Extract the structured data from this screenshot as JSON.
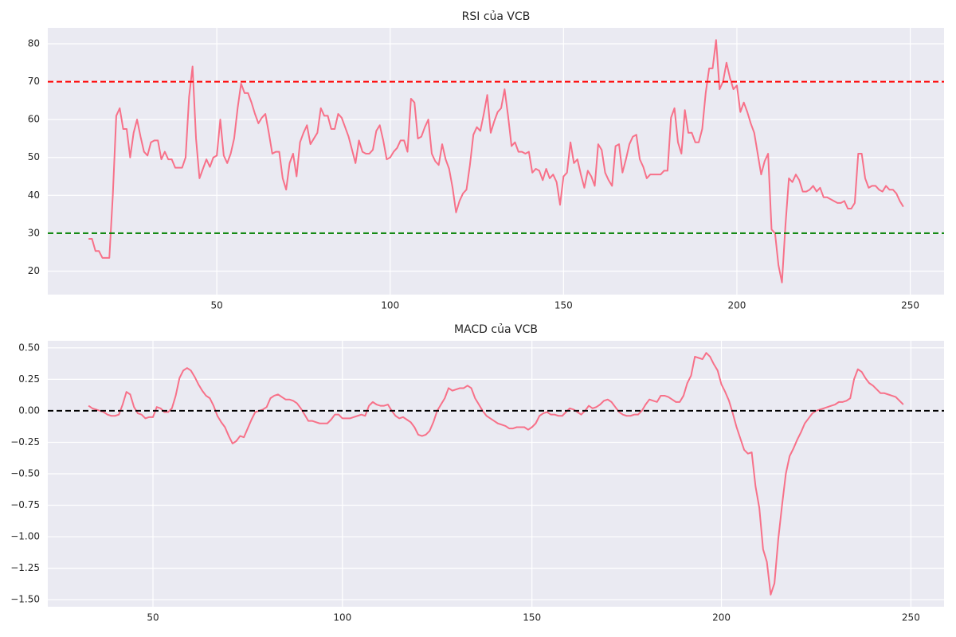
{
  "chart_data": [
    {
      "type": "line",
      "title": "RSI của VCB",
      "color": "#f77189",
      "grid": true,
      "x": [
        13,
        14,
        15,
        16,
        17,
        18,
        19,
        20,
        21,
        22,
        23,
        24,
        25,
        26,
        27,
        28,
        29,
        30,
        31,
        32,
        33,
        34,
        35,
        36,
        37,
        38,
        39,
        40,
        41,
        42,
        43,
        44,
        45,
        46,
        47,
        48,
        49,
        50,
        51,
        52,
        53,
        54,
        55,
        56,
        57,
        58,
        59,
        60,
        61,
        62,
        63,
        64,
        65,
        66,
        67,
        68,
        69,
        70,
        71,
        72,
        73,
        74,
        75,
        76,
        77,
        78,
        79,
        80,
        81,
        82,
        83,
        84,
        85,
        86,
        87,
        88,
        89,
        90,
        91,
        92,
        93,
        94,
        95,
        96,
        97,
        98,
        99,
        100,
        101,
        102,
        103,
        104,
        105,
        106,
        107,
        108,
        109,
        110,
        111,
        112,
        113,
        114,
        115,
        116,
        117,
        118,
        119,
        120,
        121,
        122,
        123,
        124,
        125,
        126,
        127,
        128,
        129,
        130,
        131,
        132,
        133,
        134,
        135,
        136,
        137,
        138,
        139,
        140,
        141,
        142,
        143,
        144,
        145,
        146,
        147,
        148,
        149,
        150,
        151,
        152,
        153,
        154,
        155,
        156,
        157,
        158,
        159,
        160,
        161,
        162,
        163,
        164,
        165,
        166,
        167,
        168,
        169,
        170,
        171,
        172,
        173,
        174,
        175,
        176,
        177,
        178,
        179,
        180,
        181,
        182,
        183,
        184,
        185,
        186,
        187,
        188,
        189,
        190,
        191,
        192,
        193,
        194,
        195,
        196,
        197,
        198,
        199,
        200,
        201,
        202,
        203,
        204,
        205,
        206,
        207,
        208,
        209,
        210,
        211,
        212,
        213,
        214,
        215,
        216,
        217,
        218,
        219,
        220,
        221,
        222,
        223,
        224,
        225,
        226,
        227,
        228,
        229,
        230,
        231,
        232,
        233,
        234,
        235,
        236,
        237,
        238,
        239,
        240,
        241,
        242,
        243,
        244,
        245,
        246,
        247,
        248
      ],
      "values": [
        28.5,
        28.5,
        25.3,
        25.3,
        23.5,
        23.5,
        23.5,
        40,
        61,
        63,
        57.5,
        57.5,
        50,
        56.5,
        60,
        55.5,
        51.5,
        50.5,
        54,
        54.5,
        54.5,
        49.5,
        51.5,
        49.5,
        49.5,
        47.3,
        47.3,
        47.3,
        50,
        66,
        74,
        55,
        44.5,
        47,
        49.5,
        47.5,
        50,
        50.5,
        60,
        50.5,
        48.5,
        51,
        55,
        63,
        69.5,
        67,
        67,
        64.5,
        61.5,
        59,
        60.5,
        61.5,
        56.5,
        51,
        51.5,
        51.5,
        44.5,
        41.5,
        48.5,
        51,
        45,
        54,
        56.5,
        58.5,
        53.5,
        55,
        56.5,
        63,
        61,
        61,
        57.5,
        57.5,
        61.5,
        60.5,
        58,
        55.5,
        52,
        48.5,
        54.5,
        51.5,
        51,
        51,
        52,
        57,
        58.5,
        54.5,
        49.5,
        50,
        51.5,
        52.5,
        54.5,
        54.5,
        51.5,
        65.5,
        64.5,
        55,
        55.5,
        58,
        60,
        51,
        49,
        48,
        53.5,
        49.5,
        47,
        42,
        35.5,
        38.5,
        40.5,
        41.5,
        48,
        56,
        58,
        57,
        61.5,
        66.5,
        56.5,
        59.5,
        62,
        63,
        68,
        61,
        53,
        54,
        51.5,
        51.5,
        51,
        51.5,
        46,
        47,
        46.5,
        44,
        47,
        44.5,
        45.5,
        43.5,
        37.5,
        45,
        46,
        54,
        48.5,
        49.5,
        45.5,
        42,
        46.5,
        45,
        42.5,
        53.5,
        52,
        46,
        44,
        42.5,
        53,
        53.5,
        46,
        49.5,
        53.5,
        55.5,
        56,
        49.5,
        47.5,
        44.5,
        45.5,
        45.5,
        45.5,
        45.5,
        46.5,
        46.5,
        60.5,
        63,
        54,
        51,
        62.5,
        56.5,
        56.5,
        54,
        54,
        57.5,
        67,
        73.5,
        73.5,
        81,
        68,
        70,
        75,
        71,
        68,
        69,
        62,
        64.5,
        62,
        59,
        56.5,
        51,
        45.5,
        49,
        51,
        31,
        30,
        21.5,
        17,
        32,
        44.5,
        43.5,
        45.5,
        44,
        41,
        41,
        41.5,
        42.5,
        41,
        42,
        39.5,
        39.5,
        39,
        38.5,
        38,
        38,
        38.5,
        36.5,
        36.5,
        38,
        51,
        51,
        44.5,
        42,
        42.5,
        42.5,
        41.5,
        41,
        42.5,
        41.5,
        41.5,
        40.5,
        38.5,
        37
      ],
      "hlines": [
        {
          "value": 70,
          "color": "#ff0000"
        },
        {
          "value": 30,
          "color": "#008000"
        }
      ],
      "xlim": [
        1.25,
        259.75
      ],
      "xticks": [
        50,
        100,
        150,
        200,
        250
      ],
      "ylim": [
        13.8,
        84.2
      ],
      "yticks": [
        20,
        30,
        40,
        50,
        60,
        70,
        80
      ]
    },
    {
      "type": "line",
      "title": "MACD của VCB",
      "color": "#f77189",
      "grid": true,
      "x": [
        33,
        34,
        35,
        36,
        37,
        38,
        39,
        40,
        41,
        42,
        43,
        44,
        45,
        46,
        47,
        48,
        49,
        50,
        51,
        52,
        53,
        54,
        55,
        56,
        57,
        58,
        59,
        60,
        61,
        62,
        63,
        64,
        65,
        66,
        67,
        68,
        69,
        70,
        71,
        72,
        73,
        74,
        75,
        76,
        77,
        78,
        79,
        80,
        81,
        82,
        83,
        84,
        85,
        86,
        87,
        88,
        89,
        90,
        91,
        92,
        93,
        94,
        95,
        96,
        97,
        98,
        99,
        100,
        101,
        102,
        103,
        104,
        105,
        106,
        107,
        108,
        109,
        110,
        111,
        112,
        113,
        114,
        115,
        116,
        117,
        118,
        119,
        120,
        121,
        122,
        123,
        124,
        125,
        126,
        127,
        128,
        129,
        130,
        131,
        132,
        133,
        134,
        135,
        136,
        137,
        138,
        139,
        140,
        141,
        142,
        143,
        144,
        145,
        146,
        147,
        148,
        149,
        150,
        151,
        152,
        153,
        154,
        155,
        156,
        157,
        158,
        159,
        160,
        161,
        162,
        163,
        164,
        165,
        166,
        167,
        168,
        169,
        170,
        171,
        172,
        173,
        174,
        175,
        176,
        177,
        178,
        179,
        180,
        181,
        182,
        183,
        184,
        185,
        186,
        187,
        188,
        189,
        190,
        191,
        192,
        193,
        194,
        195,
        196,
        197,
        198,
        199,
        200,
        201,
        202,
        203,
        204,
        205,
        206,
        207,
        208,
        209,
        210,
        211,
        212,
        213,
        214,
        215,
        216,
        217,
        218,
        219,
        220,
        221,
        222,
        223,
        224,
        225,
        226,
        227,
        228,
        229,
        230,
        231,
        232,
        233,
        234,
        235,
        236,
        237,
        238,
        239,
        240,
        241,
        242,
        243,
        244,
        245,
        246,
        247,
        248
      ],
      "values": [
        0.04,
        0.02,
        0.01,
        0.0,
        -0.01,
        -0.03,
        -0.04,
        -0.04,
        -0.03,
        0.05,
        0.15,
        0.13,
        0.03,
        -0.02,
        -0.03,
        -0.06,
        -0.05,
        -0.05,
        0.03,
        0.02,
        -0.01,
        -0.01,
        0.02,
        0.12,
        0.26,
        0.32,
        0.34,
        0.32,
        0.27,
        0.21,
        0.16,
        0.12,
        0.1,
        0.04,
        -0.04,
        -0.09,
        -0.13,
        -0.2,
        -0.26,
        -0.24,
        -0.2,
        -0.21,
        -0.14,
        -0.07,
        -0.01,
        0.0,
        0.01,
        0.03,
        0.1,
        0.12,
        0.13,
        0.11,
        0.09,
        0.09,
        0.08,
        0.06,
        0.02,
        -0.03,
        -0.08,
        -0.08,
        -0.09,
        -0.1,
        -0.1,
        -0.1,
        -0.07,
        -0.03,
        -0.03,
        -0.06,
        -0.06,
        -0.06,
        -0.05,
        -0.04,
        -0.03,
        -0.04,
        0.04,
        0.07,
        0.05,
        0.04,
        0.04,
        0.05,
        0.0,
        -0.04,
        -0.06,
        -0.05,
        -0.07,
        -0.09,
        -0.13,
        -0.19,
        -0.2,
        -0.19,
        -0.16,
        -0.09,
        0.0,
        0.05,
        0.1,
        0.18,
        0.16,
        0.17,
        0.18,
        0.18,
        0.2,
        0.18,
        0.1,
        0.05,
        0.0,
        -0.04,
        -0.06,
        -0.08,
        -0.1,
        -0.11,
        -0.12,
        -0.14,
        -0.14,
        -0.13,
        -0.13,
        -0.13,
        -0.15,
        -0.13,
        -0.1,
        -0.04,
        -0.02,
        -0.01,
        -0.03,
        -0.03,
        -0.04,
        -0.04,
        -0.01,
        0.02,
        0.01,
        -0.01,
        -0.03,
        0.0,
        0.04,
        0.02,
        0.03,
        0.05,
        0.08,
        0.09,
        0.07,
        0.03,
        -0.01,
        -0.03,
        -0.04,
        -0.04,
        -0.03,
        -0.03,
        0.0,
        0.05,
        0.09,
        0.08,
        0.07,
        0.12,
        0.12,
        0.11,
        0.09,
        0.07,
        0.07,
        0.12,
        0.22,
        0.28,
        0.43,
        0.42,
        0.41,
        0.46,
        0.43,
        0.37,
        0.32,
        0.21,
        0.15,
        0.08,
        -0.02,
        -0.13,
        -0.22,
        -0.31,
        -0.34,
        -0.33,
        -0.6,
        -0.77,
        -1.1,
        -1.2,
        -1.46,
        -1.37,
        -1.02,
        -0.75,
        -0.5,
        -0.36,
        -0.3,
        -0.23,
        -0.17,
        -0.1,
        -0.06,
        -0.02,
        0.0,
        0.01,
        0.02,
        0.03,
        0.04,
        0.05,
        0.07,
        0.07,
        0.08,
        0.1,
        0.25,
        0.33,
        0.31,
        0.26,
        0.22,
        0.2,
        0.17,
        0.14,
        0.14,
        0.13,
        0.12,
        0.11,
        0.08,
        0.05
      ],
      "hlines": [
        {
          "value": 0,
          "color": "#000000"
        }
      ],
      "xlim": [
        22.25,
        258.75
      ],
      "xticks": [
        50,
        100,
        150,
        200,
        250
      ],
      "ylim": [
        -1.556,
        0.556
      ],
      "yticks": [
        {
          "value": -1.5,
          "label": "−1.50"
        },
        {
          "value": -1.25,
          "label": "−1.25"
        },
        {
          "value": -1,
          "label": "−1.00"
        },
        {
          "value": -0.75,
          "label": "−0.75"
        },
        {
          "value": -0.5,
          "label": "−0.50"
        },
        {
          "value": -0.25,
          "label": "−0.25"
        },
        {
          "value": 0,
          "label": "0.00"
        },
        {
          "value": 0.25,
          "label": "0.25"
        },
        {
          "value": 0.5,
          "label": "0.50"
        }
      ]
    }
  ]
}
